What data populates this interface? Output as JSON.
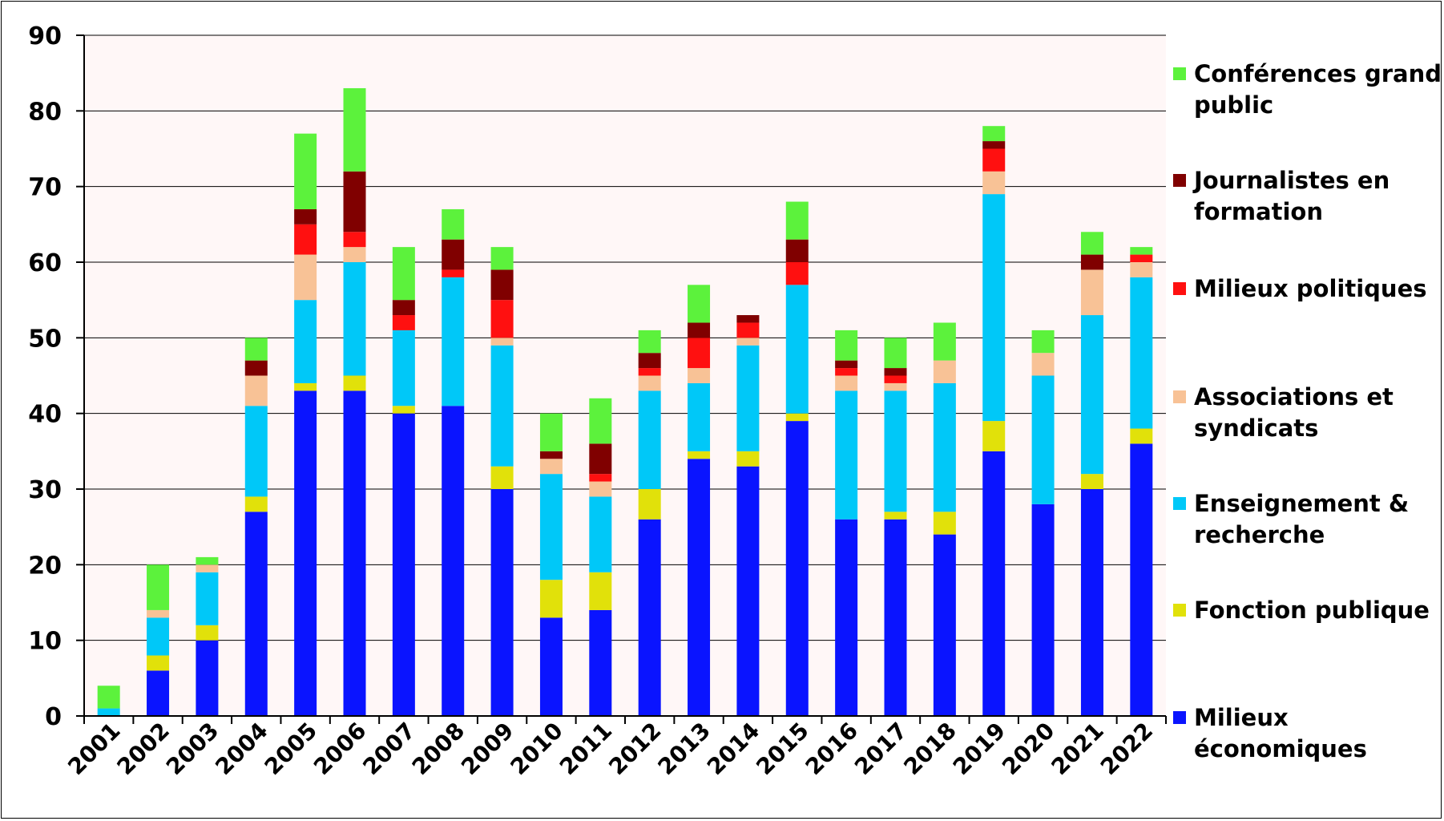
{
  "chart_data": {
    "type": "bar",
    "stacked": true,
    "categories": [
      "2001",
      "2002",
      "2003",
      "2004",
      "2005",
      "2006",
      "2007",
      "2008",
      "2009",
      "2010",
      "2011",
      "2012",
      "2013",
      "2014",
      "2015",
      "2016",
      "2017",
      "2018",
      "2019",
      "2020",
      "2021",
      "2022"
    ],
    "ylim": [
      0,
      90
    ],
    "yticks": [
      0,
      10,
      20,
      30,
      40,
      50,
      60,
      70,
      80,
      90
    ],
    "grid": true,
    "plot_background": "#fff7f7",
    "legend_position": "right",
    "series": [
      {
        "name": "Milieux économiques",
        "color": "#0a14ff",
        "values": [
          0,
          6,
          10,
          27,
          43,
          43,
          40,
          41,
          30,
          13,
          14,
          26,
          34,
          33,
          39,
          26,
          26,
          24,
          35,
          28,
          30,
          36
        ]
      },
      {
        "name": "Fonction publique",
        "color": "#e1e10a",
        "values": [
          0,
          2,
          2,
          2,
          1,
          2,
          1,
          0,
          3,
          5,
          5,
          4,
          1,
          2,
          1,
          0,
          1,
          3,
          4,
          0,
          2,
          2
        ]
      },
      {
        "name": "Enseignement & recherche",
        "color": "#00c8f8",
        "values": [
          1,
          5,
          7,
          12,
          11,
          15,
          10,
          17,
          16,
          14,
          10,
          13,
          9,
          14,
          17,
          17,
          16,
          17,
          30,
          17,
          21,
          20
        ]
      },
      {
        "name": "Associations et syndicats",
        "color": "#f8c296",
        "values": [
          0,
          1,
          1,
          4,
          6,
          2,
          0,
          0,
          1,
          2,
          2,
          2,
          2,
          1,
          0,
          2,
          1,
          3,
          3,
          3,
          6,
          2
        ]
      },
      {
        "name": "Milieux politiques",
        "color": "#ff1010",
        "values": [
          0,
          0,
          0,
          0,
          4,
          2,
          2,
          1,
          5,
          0,
          1,
          1,
          4,
          2,
          3,
          1,
          1,
          0,
          3,
          0,
          0,
          1
        ]
      },
      {
        "name": "Journalistes en formation",
        "color": "#800000",
        "values": [
          0,
          0,
          0,
          2,
          2,
          8,
          2,
          4,
          4,
          1,
          4,
          2,
          2,
          1,
          3,
          1,
          1,
          0,
          1,
          0,
          2,
          0
        ]
      },
      {
        "name": "Conférences grand public",
        "color": "#5cf23c",
        "values": [
          3,
          6,
          1,
          3,
          10,
          11,
          7,
          4,
          3,
          5,
          6,
          3,
          5,
          0,
          5,
          4,
          4,
          5,
          2,
          3,
          3,
          1
        ]
      }
    ],
    "legend": [
      {
        "series": "Conférences grand public",
        "lines": [
          "Conférences grand",
          "public"
        ]
      },
      {
        "series": "Journalistes en formation",
        "lines": [
          "Journalistes en",
          "formation"
        ]
      },
      {
        "series": "Milieux politiques",
        "lines": [
          "Milieux politiques"
        ]
      },
      {
        "series": "Associations et syndicats",
        "lines": [
          "Associations et",
          "syndicats"
        ]
      },
      {
        "series": "Enseignement & recherche",
        "lines": [
          "Enseignement &",
          "recherche"
        ]
      },
      {
        "series": "Fonction publique",
        "lines": [
          "Fonction publique"
        ]
      },
      {
        "series": "Milieux économiques",
        "lines": [
          "Milieux",
          "économiques"
        ]
      }
    ]
  }
}
